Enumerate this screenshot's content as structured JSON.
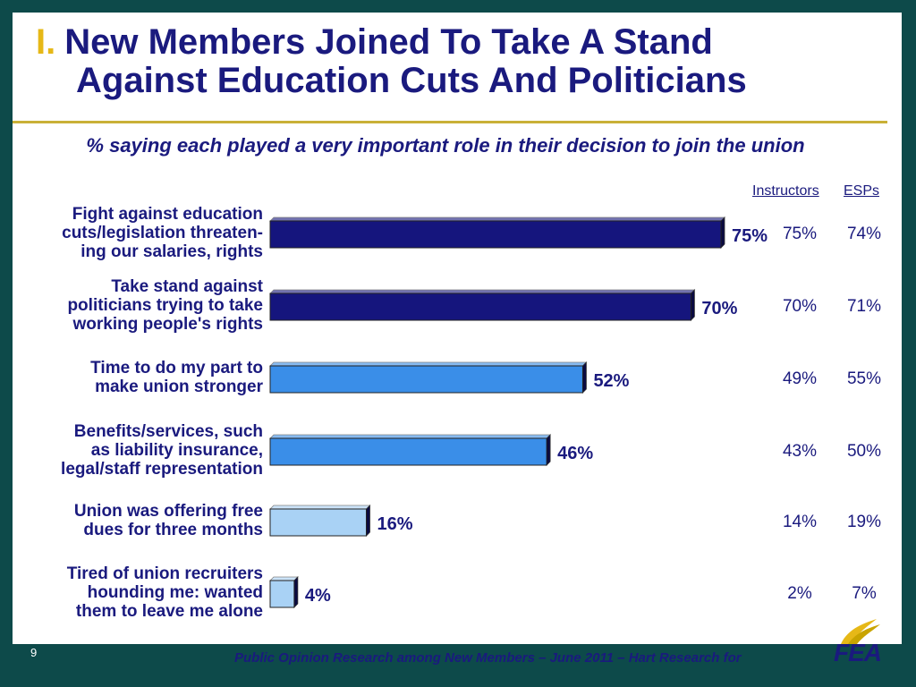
{
  "title": {
    "number": "I.",
    "line1": "New Members Joined To Take A Stand",
    "line2": "Against Education Cuts And Politicians"
  },
  "footer": {
    "page_number": "9",
    "source": "Public Opinion Research among New Members – June 2011 – Hart Research for",
    "logo_text": "FEA"
  },
  "colors": {
    "dark_bar": "#15157d",
    "mid_bar": "#3a8ee8",
    "light_bar": "#a9d2f5",
    "text": "#1a1a7e",
    "accent": "#e6b817"
  },
  "chart_data": {
    "type": "bar",
    "orientation": "horizontal",
    "subtitle": "% saying each played a very important role in their decision to join the union",
    "categories": [
      [
        "Fight against education",
        "cuts/legislation threaten-",
        "ing our salaries, rights"
      ],
      [
        "Take stand against",
        "politicians trying to take",
        "working people's rights"
      ],
      [
        "Time to do my part to",
        "make union stronger"
      ],
      [
        "Benefits/services, such",
        "as liability insurance,",
        "legal/staff representation"
      ],
      [
        "Union was offering free",
        "dues for three months"
      ],
      [
        "Tired of union recruiters",
        "hounding me: wanted",
        "them to leave me alone"
      ]
    ],
    "values": [
      75,
      70,
      52,
      46,
      16,
      4
    ],
    "data_labels": [
      "75%",
      "70%",
      "52%",
      "46%",
      "16%",
      "4%"
    ],
    "shade": [
      "dark",
      "dark",
      "mid",
      "mid",
      "light",
      "light"
    ],
    "xlim": [
      0,
      100
    ],
    "grid": false,
    "columns": [
      {
        "name": "Instructors",
        "values": [
          "75%",
          "70%",
          "49%",
          "43%",
          "14%",
          "2%"
        ]
      },
      {
        "name": "ESPs",
        "values": [
          "74%",
          "71%",
          "55%",
          "50%",
          "19%",
          "7%"
        ]
      }
    ]
  }
}
